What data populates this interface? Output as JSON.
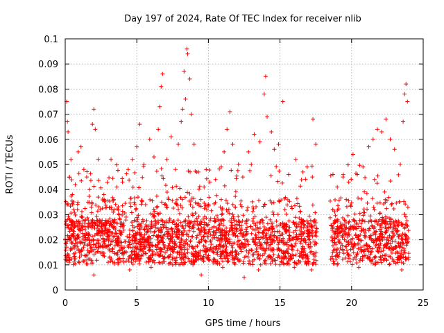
{
  "chart_data": {
    "type": "scatter",
    "title": "Day 197 of 2024, Rate Of TEC Index for receiver nlib",
    "xlabel": "GPS time / hours",
    "ylabel": "ROTI / TECUs",
    "xlim": [
      0,
      25
    ],
    "ylim": [
      0,
      0.1
    ],
    "x_ticks": [
      "0",
      "5",
      "10",
      "15",
      "20",
      "25"
    ],
    "x_tick_values": [
      0,
      5,
      10,
      15,
      20,
      25
    ],
    "y_ticks": [
      "0",
      "0.01",
      "0.02",
      "0.03",
      "0.04",
      "0.05",
      "0.06",
      "0.07",
      "0.08",
      "0.09",
      "0.1"
    ],
    "y_tick_values": [
      0,
      0.01,
      0.02,
      0.03,
      0.04,
      0.05,
      0.06,
      0.07,
      0.08,
      0.09,
      0.1
    ],
    "grid": true,
    "marker": "+",
    "color": "#ff0000",
    "data_gap_hours": [
      17.6,
      18.5
    ],
    "series": [
      {
        "name": "ROTI",
        "points": [
          [
            0.1,
            0.075
          ],
          [
            0.15,
            0.067
          ],
          [
            0.2,
            0.063
          ],
          [
            0.3,
            0.045
          ],
          [
            0.4,
            0.052
          ],
          [
            0.5,
            0.038
          ],
          [
            0.7,
            0.042
          ],
          [
            0.9,
            0.055
          ],
          [
            1.1,
            0.057
          ],
          [
            1.3,
            0.048
          ],
          [
            1.5,
            0.045
          ],
          [
            1.7,
            0.04
          ],
          [
            1.9,
            0.066
          ],
          [
            2.0,
            0.072
          ],
          [
            2.1,
            0.064
          ],
          [
            2.3,
            0.052
          ],
          [
            2.7,
            0.038
          ],
          [
            3.2,
            0.052
          ],
          [
            3.6,
            0.041
          ],
          [
            4.0,
            0.043
          ],
          [
            4.4,
            0.048
          ],
          [
            4.7,
            0.052
          ],
          [
            5.0,
            0.057
          ],
          [
            5.2,
            0.066
          ],
          [
            5.5,
            0.05
          ],
          [
            5.9,
            0.06
          ],
          [
            6.2,
            0.053
          ],
          [
            6.5,
            0.064
          ],
          [
            6.6,
            0.073
          ],
          [
            6.7,
            0.081
          ],
          [
            6.8,
            0.086
          ],
          [
            7.1,
            0.052
          ],
          [
            7.4,
            0.061
          ],
          [
            7.7,
            0.048
          ],
          [
            7.9,
            0.058
          ],
          [
            8.1,
            0.067
          ],
          [
            8.2,
            0.072
          ],
          [
            8.3,
            0.087
          ],
          [
            8.4,
            0.076
          ],
          [
            8.5,
            0.096
          ],
          [
            8.55,
            0.094
          ],
          [
            8.7,
            0.084
          ],
          [
            8.8,
            0.07
          ],
          [
            9.0,
            0.058
          ],
          [
            9.3,
            0.047
          ],
          [
            9.7,
            0.041
          ],
          [
            10.1,
            0.043
          ],
          [
            10.5,
            0.044
          ],
          [
            10.9,
            0.049
          ],
          [
            11.1,
            0.055
          ],
          [
            11.3,
            0.064
          ],
          [
            11.5,
            0.071
          ],
          [
            11.7,
            0.058
          ],
          [
            12.1,
            0.05
          ],
          [
            12.4,
            0.045
          ],
          [
            12.8,
            0.055
          ],
          [
            13.2,
            0.062
          ],
          [
            13.6,
            0.059
          ],
          [
            13.9,
            0.078
          ],
          [
            14.0,
            0.085
          ],
          [
            14.1,
            0.069
          ],
          [
            14.4,
            0.063
          ],
          [
            14.6,
            0.056
          ],
          [
            14.9,
            0.058
          ],
          [
            15.2,
            0.075
          ],
          [
            15.6,
            0.046
          ],
          [
            16.1,
            0.052
          ],
          [
            16.6,
            0.047
          ],
          [
            16.9,
            0.049
          ],
          [
            17.3,
            0.068
          ],
          [
            17.5,
            0.058
          ],
          [
            18.7,
            0.046
          ],
          [
            19.0,
            0.041
          ],
          [
            19.4,
            0.045
          ],
          [
            19.8,
            0.043
          ],
          [
            20.1,
            0.054
          ],
          [
            20.4,
            0.046
          ],
          [
            20.8,
            0.049
          ],
          [
            21.2,
            0.057
          ],
          [
            21.5,
            0.06
          ],
          [
            21.8,
            0.064
          ],
          [
            22.1,
            0.063
          ],
          [
            22.4,
            0.068
          ],
          [
            22.7,
            0.06
          ],
          [
            23.0,
            0.056
          ],
          [
            23.4,
            0.05
          ],
          [
            23.6,
            0.067
          ],
          [
            23.7,
            0.078
          ],
          [
            23.8,
            0.082
          ],
          [
            23.9,
            0.075
          ],
          [
            0.3,
            0.012
          ],
          [
            1.0,
            0.015
          ],
          [
            2.0,
            0.006
          ],
          [
            3.0,
            0.011
          ],
          [
            4.5,
            0.008
          ],
          [
            6.0,
            0.009
          ],
          [
            7.5,
            0.01
          ],
          [
            9.5,
            0.006
          ],
          [
            11.0,
            0.009
          ],
          [
            12.5,
            0.005
          ],
          [
            13.5,
            0.008
          ],
          [
            15.0,
            0.01
          ],
          [
            16.0,
            0.009
          ],
          [
            17.2,
            0.008
          ],
          [
            19.0,
            0.01
          ],
          [
            20.5,
            0.009
          ],
          [
            22.0,
            0.012
          ],
          [
            23.5,
            0.008
          ]
        ]
      }
    ]
  }
}
